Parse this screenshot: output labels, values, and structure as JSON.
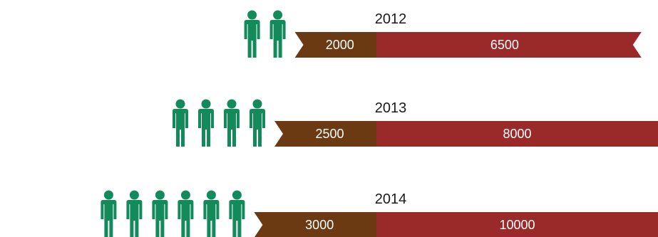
{
  "chart_data": {
    "type": "bar",
    "orientation": "horizontal",
    "stacked": true,
    "categories": [
      "2012",
      "2013",
      "2014"
    ],
    "series": [
      {
        "values": [
          2000,
          2500,
          3000
        ]
      },
      {
        "values": [
          6500,
          8000,
          10000
        ]
      }
    ],
    "people_icons": [
      2,
      4,
      6
    ],
    "title": "",
    "xlabel": "",
    "ylabel": "",
    "legend": "none",
    "grid": false
  },
  "colors": {
    "series_1": "#6b3a12",
    "series_2": "#9a2a2a",
    "person": "#138a5a"
  },
  "icons": {
    "person": "person-icon"
  }
}
